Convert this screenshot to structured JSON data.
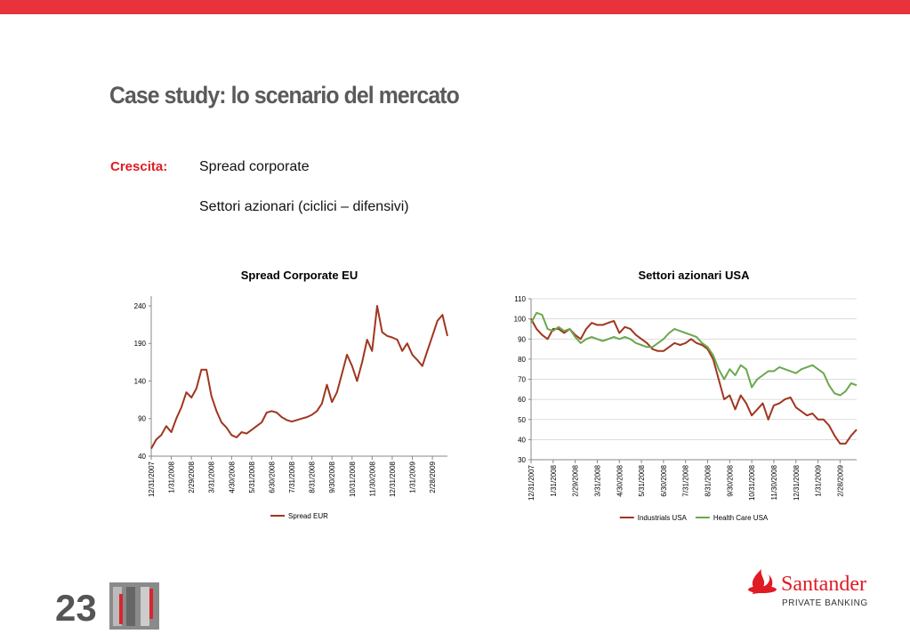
{
  "header": {
    "title": "Case study: lo scenario del mercato"
  },
  "body": {
    "label": "Crescita:",
    "items": [
      "Spread corporate",
      "Settori azionari (ciclici – difensivi)"
    ]
  },
  "chart_data": [
    {
      "type": "line",
      "title": "Spread Corporate EU",
      "categories": [
        "12/31/2007",
        null,
        null,
        null,
        "1/31/2008",
        null,
        null,
        null,
        "2/29/2008",
        null,
        null,
        null,
        "3/31/2008",
        null,
        null,
        null,
        "4/30/2008",
        null,
        null,
        null,
        "5/31/2008",
        null,
        null,
        null,
        "6/30/2008",
        null,
        null,
        null,
        "7/31/2008",
        null,
        null,
        null,
        "8/31/2008",
        null,
        null,
        null,
        "9/30/2008",
        null,
        null,
        null,
        "10/31/2008",
        null,
        null,
        null,
        "11/30/2008",
        null,
        null,
        null,
        "12/31/2008",
        null,
        null,
        null,
        "1/31/2009",
        null,
        null,
        null,
        "2/28/2009",
        null,
        null,
        null
      ],
      "series": [
        {
          "name": "Spread EUR",
          "color": "#a0361f",
          "values": [
            50,
            62,
            68,
            80,
            72,
            90,
            105,
            125,
            118,
            130,
            155,
            155,
            120,
            100,
            85,
            78,
            68,
            65,
            72,
            70,
            75,
            80,
            85,
            98,
            100,
            98,
            92,
            88,
            86,
            88,
            90,
            92,
            95,
            100,
            110,
            135,
            112,
            125,
            150,
            175,
            160,
            140,
            165,
            195,
            180,
            240,
            205,
            200,
            198,
            195,
            180,
            190,
            175,
            168,
            160,
            180,
            200,
            220,
            228,
            200
          ]
        }
      ],
      "ylim": [
        40,
        253
      ],
      "yticks": [
        40,
        90,
        140,
        190,
        240
      ],
      "grid": false,
      "legend": "bottom"
    },
    {
      "type": "line",
      "title": "Settori azionari USA",
      "categories": [
        "12/31/2007",
        null,
        null,
        null,
        "1/31/2008",
        null,
        null,
        null,
        "2/29/2008",
        null,
        null,
        null,
        "3/31/2008",
        null,
        null,
        null,
        "4/30/2008",
        null,
        null,
        null,
        "5/31/2008",
        null,
        null,
        null,
        "6/30/2008",
        null,
        null,
        null,
        "7/31/2008",
        null,
        null,
        null,
        "8/31/2008",
        null,
        null,
        null,
        "9/30/2008",
        null,
        null,
        null,
        "10/31/2008",
        null,
        null,
        null,
        "11/30/2008",
        null,
        null,
        null,
        "12/31/2008",
        null,
        null,
        null,
        "1/31/2009",
        null,
        null,
        null,
        "2/28/2009",
        null,
        null,
        null
      ],
      "series": [
        {
          "name": "Industrials USA",
          "color": "#a0361f",
          "values": [
            100,
            95,
            92,
            90,
            95,
            95,
            93,
            95,
            92,
            90,
            95,
            98,
            97,
            97,
            98,
            99,
            93,
            96,
            95,
            92,
            90,
            88,
            85,
            84,
            84,
            86,
            88,
            87,
            88,
            90,
            88,
            87,
            85,
            80,
            70,
            60,
            62,
            55,
            62,
            58,
            52,
            55,
            58,
            50,
            57,
            58,
            60,
            61,
            56,
            54,
            52,
            53,
            50,
            50,
            47,
            42,
            38,
            38,
            42,
            45
          ]
        },
        {
          "name": "Health Care USA",
          "color": "#6aa84f",
          "values": [
            98,
            103,
            102,
            95,
            94,
            96,
            94,
            95,
            91,
            88,
            90,
            91,
            90,
            89,
            90,
            91,
            90,
            91,
            90,
            88,
            87,
            86,
            86,
            88,
            90,
            93,
            95,
            94,
            93,
            92,
            91,
            88,
            86,
            82,
            75,
            70,
            75,
            72,
            77,
            75,
            66,
            70,
            72,
            74,
            74,
            76,
            75,
            74,
            73,
            75,
            76,
            77,
            75,
            73,
            67,
            63,
            62,
            64,
            68,
            67
          ]
        }
      ],
      "ylim": [
        30,
        110
      ],
      "yticks": [
        30,
        40,
        50,
        60,
        70,
        80,
        90,
        100,
        110
      ],
      "grid": true,
      "legend": "bottom"
    }
  ],
  "footer": {
    "page": "23",
    "brand": "Santander",
    "brand_sub": "PRIVATE BANKING"
  }
}
